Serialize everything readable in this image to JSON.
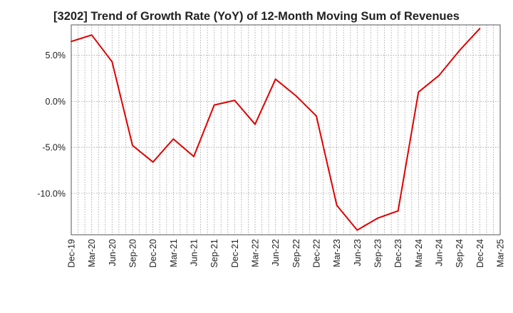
{
  "chart_data": {
    "type": "line",
    "title": "[3202]  Trend of Growth Rate (YoY) of 12-Month Moving Sum of Revenues",
    "xlabel": "",
    "ylabel": "",
    "grid": true,
    "legend": "none",
    "y_unit": "%",
    "ylim": [
      -14.5,
      8.3
    ],
    "yticks": [
      5.0,
      0.0,
      -5.0,
      -10.0
    ],
    "ytick_labels": [
      "5.0%",
      "0.0%",
      "-5.0%",
      "-10.0%"
    ],
    "x_months": [
      "2019-12",
      "2020-01",
      "2020-02",
      "2020-03",
      "2020-04",
      "2020-05",
      "2020-06",
      "2020-07",
      "2020-08",
      "2020-09",
      "2020-10",
      "2020-11",
      "2020-12",
      "2021-01",
      "2021-02",
      "2021-03",
      "2021-04",
      "2021-05",
      "2021-06",
      "2021-07",
      "2021-08",
      "2021-09",
      "2021-10",
      "2021-11",
      "2021-12",
      "2022-01",
      "2022-02",
      "2022-03",
      "2022-04",
      "2022-05",
      "2022-06",
      "2022-07",
      "2022-08",
      "2022-09",
      "2022-10",
      "2022-11",
      "2022-12",
      "2023-01",
      "2023-02",
      "2023-03",
      "2023-04",
      "2023-05",
      "2023-06",
      "2023-07",
      "2023-08",
      "2023-09",
      "2023-10",
      "2023-11",
      "2023-12",
      "2024-01",
      "2024-02",
      "2024-03",
      "2024-04",
      "2024-05",
      "2024-06",
      "2024-07",
      "2024-08",
      "2024-09",
      "2024-10",
      "2024-11",
      "2024-12",
      "2025-01",
      "2025-02",
      "2025-03"
    ],
    "x_tick_labels": [
      "Dec-19",
      "Mar-20",
      "Jun-20",
      "Sep-20",
      "Dec-20",
      "Mar-21",
      "Jun-21",
      "Sep-21",
      "Dec-21",
      "Mar-22",
      "Jun-22",
      "Sep-22",
      "Dec-22",
      "Mar-23",
      "Jun-23",
      "Sep-23",
      "Dec-23",
      "Mar-24",
      "Jun-24",
      "Sep-24",
      "Dec-24",
      "Mar-25"
    ],
    "series": [
      {
        "color": "#e00000",
        "points": [
          {
            "x": "2019-12",
            "y": 6.5
          },
          {
            "x": "2020-03",
            "y": 7.2
          },
          {
            "x": "2020-06",
            "y": 4.3
          },
          {
            "x": "2020-09",
            "y": -4.8
          },
          {
            "x": "2020-12",
            "y": -6.6
          },
          {
            "x": "2021-03",
            "y": -4.1
          },
          {
            "x": "2021-06",
            "y": -6.0
          },
          {
            "x": "2021-09",
            "y": -0.4
          },
          {
            "x": "2021-12",
            "y": 0.1
          },
          {
            "x": "2022-03",
            "y": -2.5
          },
          {
            "x": "2022-06",
            "y": 2.4
          },
          {
            "x": "2022-09",
            "y": 0.6
          },
          {
            "x": "2022-12",
            "y": -1.6
          },
          {
            "x": "2023-03",
            "y": -11.3
          },
          {
            "x": "2023-06",
            "y": -14.0
          },
          {
            "x": "2023-09",
            "y": -12.7
          },
          {
            "x": "2023-12",
            "y": -11.9
          },
          {
            "x": "2024-03",
            "y": 1.0
          },
          {
            "x": "2024-06",
            "y": 2.8
          },
          {
            "x": "2024-09",
            "y": 5.5
          },
          {
            "x": "2024-12",
            "y": 7.9
          }
        ]
      }
    ]
  }
}
